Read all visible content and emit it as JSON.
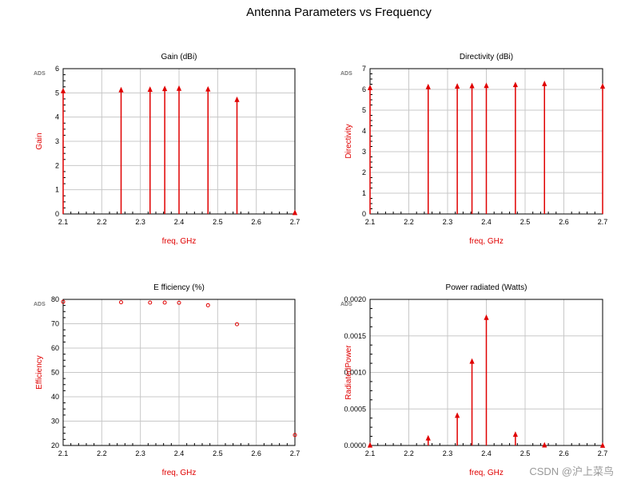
{
  "title": "Antenna Parameters vs Frequency",
  "watermark": "CSDN @沪上菜鸟",
  "colors": {
    "series": "#e00000",
    "grid": "#c8c8c8",
    "axis": "#000000"
  },
  "chart_data": [
    {
      "type": "stem",
      "title": "Gain (dBi)",
      "ylabel": "Gain",
      "xlabel": "freq, GHz",
      "brand": "ADS",
      "xlim": [
        2.1,
        2.7
      ],
      "ylim": [
        0,
        6
      ],
      "xticks": [
        "2.1",
        "2.2",
        "2.3",
        "2.4",
        "2.5",
        "2.6",
        "2.7"
      ],
      "yticks": [
        "0",
        "1",
        "2",
        "3",
        "4",
        "5",
        "6"
      ],
      "marker": "triangle",
      "x": [
        2.1,
        2.25,
        2.325,
        2.363,
        2.4,
        2.475,
        2.55,
        2.7
      ],
      "y": [
        5.08,
        5.12,
        5.14,
        5.17,
        5.18,
        5.15,
        4.72,
        0.05
      ]
    },
    {
      "type": "stem",
      "title": "Directivity (dBi)",
      "ylabel": "Directivity",
      "xlabel": "freq, GHz",
      "brand": "ADS",
      "xlim": [
        2.1,
        2.7
      ],
      "ylim": [
        0,
        7
      ],
      "xticks": [
        "2.1",
        "2.2",
        "2.3",
        "2.4",
        "2.5",
        "2.6",
        "2.7"
      ],
      "yticks": [
        "0",
        "1",
        "2",
        "3",
        "4",
        "5",
        "6",
        "7"
      ],
      "marker": "triangle",
      "x": [
        2.1,
        2.25,
        2.325,
        2.363,
        2.4,
        2.475,
        2.55,
        2.7
      ],
      "y": [
        6.08,
        6.12,
        6.15,
        6.17,
        6.18,
        6.22,
        6.27,
        6.15
      ]
    },
    {
      "type": "scatter",
      "title": "E fficiency (%)",
      "ylabel": "Efficiency",
      "xlabel": "freq, GHz",
      "brand": "ADS",
      "xlim": [
        2.1,
        2.7
      ],
      "ylim": [
        20,
        80
      ],
      "xticks": [
        "2.1",
        "2.2",
        "2.3",
        "2.4",
        "2.5",
        "2.6",
        "2.7"
      ],
      "yticks": [
        "20",
        "30",
        "40",
        "50",
        "60",
        "70",
        "80"
      ],
      "marker": "circle",
      "x": [
        2.1,
        2.25,
        2.325,
        2.363,
        2.4,
        2.475,
        2.55,
        2.7
      ],
      "y": [
        79.0,
        78.8,
        78.7,
        78.7,
        78.6,
        77.6,
        69.8,
        24.3
      ]
    },
    {
      "type": "stem",
      "title": "Power radiated (Watts)",
      "ylabel": "RadiatedPower",
      "xlabel": "freq, GHz",
      "brand": "ADS",
      "xlim": [
        2.1,
        2.7
      ],
      "ylim": [
        0,
        0.002
      ],
      "xticks": [
        "2.1",
        "2.2",
        "2.3",
        "2.4",
        "2.5",
        "2.6",
        "2.7"
      ],
      "yticks": [
        "0.0000",
        "0.0005",
        "0.0010",
        "0.0015",
        "0.0020"
      ],
      "marker": "triangle",
      "x": [
        2.1,
        2.25,
        2.325,
        2.363,
        2.4,
        2.475,
        2.55,
        2.7
      ],
      "y": [
        3e-06,
        0.0001,
        0.00041,
        0.00115,
        0.00175,
        0.00015,
        5e-06,
        0.0
      ]
    }
  ]
}
